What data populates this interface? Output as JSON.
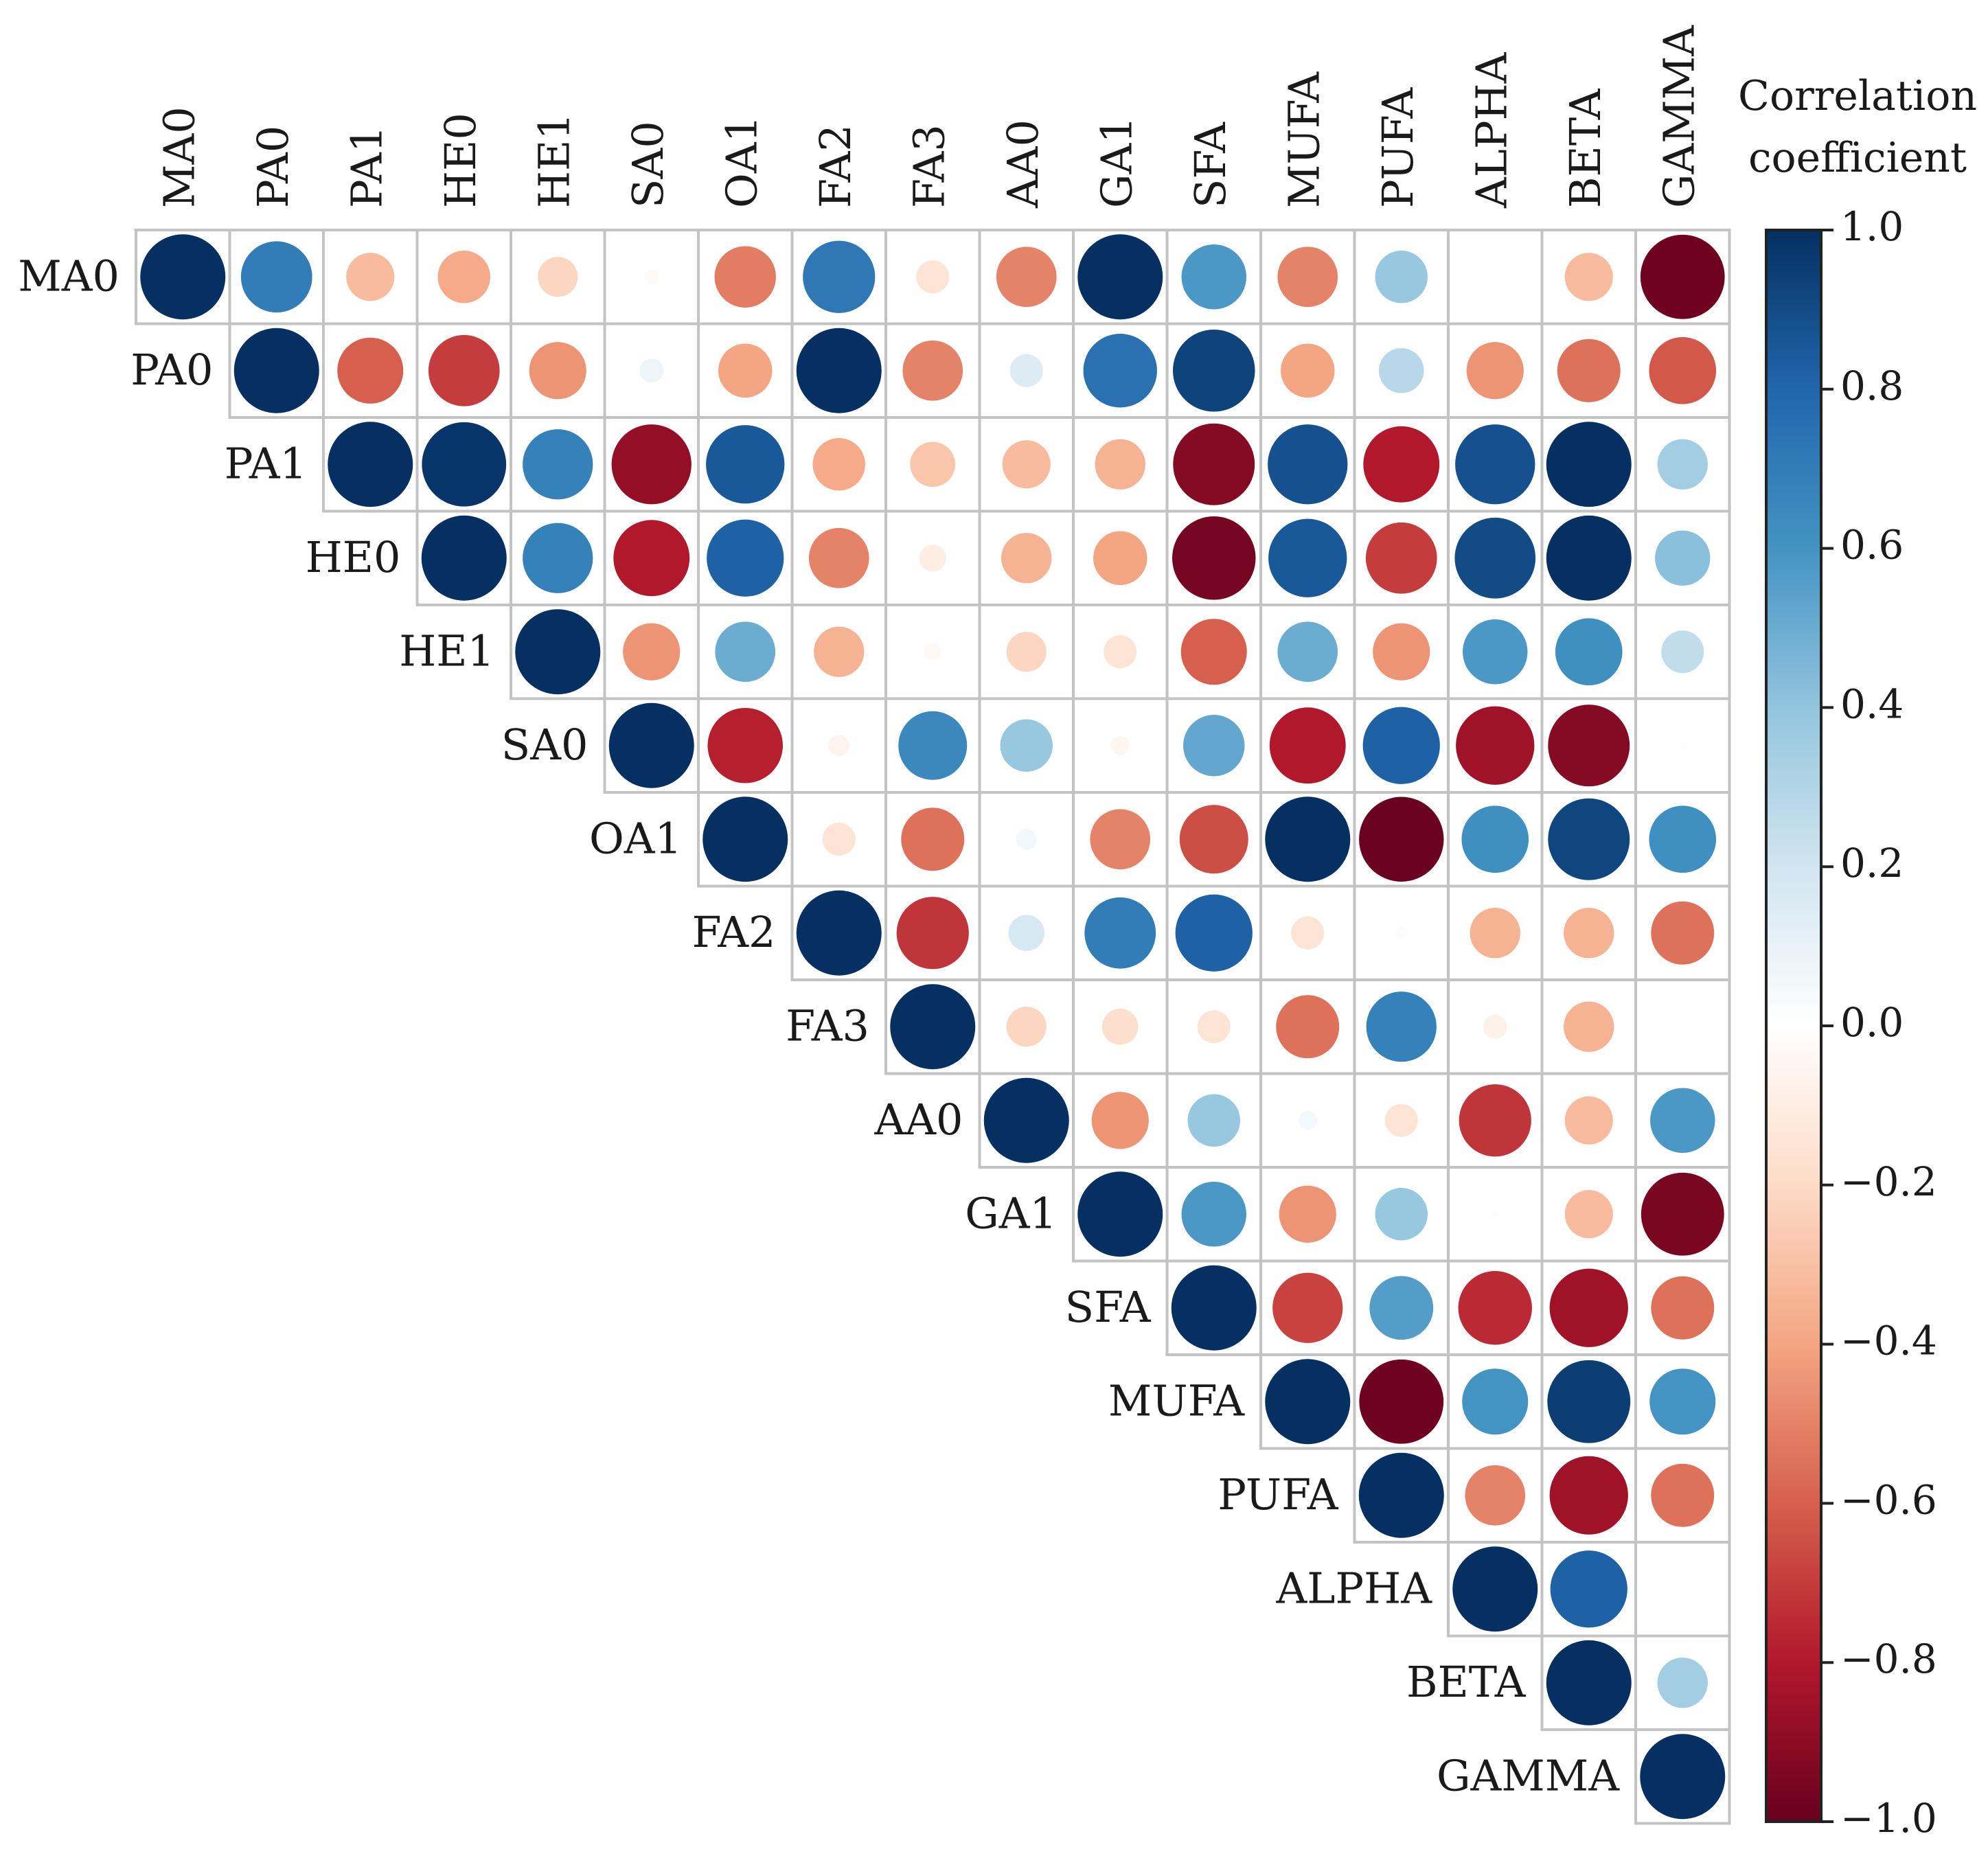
{
  "chart_data": {
    "type": "heatmap",
    "subtype": "correlation-circle-upper-triangle",
    "variables": [
      "MA0",
      "PA0",
      "PA1",
      "HE0",
      "HE1",
      "SA0",
      "OA1",
      "FA2",
      "FA3",
      "AA0",
      "GA1",
      "SFA",
      "MUFA",
      "PUFA",
      "ALPHA",
      "BETA",
      "GAMMA"
    ],
    "matrix": [
      [
        1.0,
        0.7,
        -0.32,
        -0.38,
        -0.22,
        -0.03,
        -0.52,
        0.72,
        -0.15,
        -0.5,
        1.0,
        0.58,
        -0.5,
        0.38,
        0.0,
        -0.32,
        -0.98
      ],
      [
        null,
        1.0,
        -0.6,
        -0.7,
        -0.45,
        0.08,
        -0.4,
        1.0,
        -0.5,
        0.15,
        0.75,
        0.93,
        -0.4,
        0.28,
        -0.45,
        -0.55,
        -0.62
      ],
      [
        null,
        null,
        1.0,
        0.98,
        0.68,
        -0.88,
        0.85,
        -0.38,
        -0.28,
        -0.32,
        -0.35,
        -0.92,
        0.88,
        -0.8,
        0.88,
        1.0,
        0.35
      ],
      [
        null,
        null,
        null,
        1.0,
        0.68,
        -0.8,
        0.82,
        -0.5,
        -0.1,
        -0.35,
        -0.4,
        -0.96,
        0.85,
        -0.7,
        0.9,
        1.0,
        0.42
      ],
      [
        null,
        null,
        null,
        null,
        1.0,
        -0.45,
        0.5,
        -0.35,
        -0.04,
        -0.22,
        -0.15,
        -0.6,
        0.5,
        -0.45,
        0.58,
        0.62,
        0.25
      ],
      [
        null,
        null,
        null,
        null,
        null,
        1.0,
        -0.78,
        -0.06,
        0.65,
        0.38,
        -0.05,
        0.52,
        -0.8,
        0.82,
        -0.85,
        -0.92,
        -0.01
      ],
      [
        null,
        null,
        null,
        null,
        null,
        null,
        1.0,
        -0.15,
        -0.55,
        0.06,
        -0.5,
        -0.65,
        1.0,
        -0.99,
        0.62,
        0.92,
        0.62
      ],
      [
        null,
        null,
        null,
        null,
        null,
        null,
        null,
        1.0,
        -0.72,
        0.18,
        0.7,
        0.82,
        -0.15,
        0.02,
        -0.35,
        -0.35,
        -0.55
      ],
      [
        null,
        null,
        null,
        null,
        null,
        null,
        null,
        null,
        1.0,
        -0.22,
        -0.18,
        -0.15,
        -0.55,
        0.68,
        -0.08,
        -0.35,
        0.0
      ],
      [
        null,
        null,
        null,
        null,
        null,
        null,
        null,
        null,
        null,
        1.0,
        -0.45,
        0.38,
        0.05,
        -0.15,
        -0.72,
        -0.32,
        0.58
      ],
      [
        null,
        null,
        null,
        null,
        null,
        null,
        null,
        null,
        null,
        null,
        1.0,
        0.58,
        -0.45,
        0.38,
        -0.01,
        -0.32,
        -0.95
      ],
      [
        null,
        null,
        null,
        null,
        null,
        null,
        null,
        null,
        null,
        null,
        null,
        1.0,
        -0.68,
        0.56,
        -0.75,
        -0.85,
        -0.55
      ],
      [
        null,
        null,
        null,
        null,
        null,
        null,
        null,
        null,
        null,
        null,
        null,
        null,
        1.0,
        -0.98,
        0.6,
        0.95,
        0.6
      ],
      [
        null,
        null,
        null,
        null,
        null,
        null,
        null,
        null,
        null,
        null,
        null,
        null,
        null,
        1.0,
        -0.5,
        -0.85,
        -0.55
      ],
      [
        null,
        null,
        null,
        null,
        null,
        null,
        null,
        null,
        null,
        null,
        null,
        null,
        null,
        null,
        1.0,
        0.82,
        0.0
      ],
      [
        null,
        null,
        null,
        null,
        null,
        null,
        null,
        null,
        null,
        null,
        null,
        null,
        null,
        null,
        null,
        1.0,
        0.35
      ],
      [
        null,
        null,
        null,
        null,
        null,
        null,
        null,
        null,
        null,
        null,
        null,
        null,
        null,
        null,
        null,
        null,
        1.0
      ]
    ],
    "colorbar": {
      "title": [
        "Correlation",
        "coefficient"
      ],
      "range": [
        -1.0,
        1.0
      ],
      "ticks": [
        1.0,
        0.8,
        0.6,
        0.4,
        0.2,
        0.0,
        -0.2,
        -0.4,
        -0.6,
        -0.8,
        -1.0
      ],
      "tick_labels": [
        "1.0",
        "0.8",
        "0.6",
        "0.4",
        "0.2",
        "0.0",
        "−0.2",
        "−0.4",
        "−0.6",
        "−0.8",
        "−1.0"
      ]
    },
    "colormap": {
      "stops": [
        [
          -1.0,
          "#67001f"
        ],
        [
          -0.8,
          "#b2182b"
        ],
        [
          -0.6,
          "#d6604d"
        ],
        [
          -0.4,
          "#f4a582"
        ],
        [
          -0.2,
          "#fddbc7"
        ],
        [
          0.0,
          "#ffffff"
        ],
        [
          0.2,
          "#d1e5f0"
        ],
        [
          0.4,
          "#92c5de"
        ],
        [
          0.6,
          "#4393c3"
        ],
        [
          0.8,
          "#2166ac"
        ],
        [
          1.0,
          "#053061"
        ]
      ]
    }
  }
}
